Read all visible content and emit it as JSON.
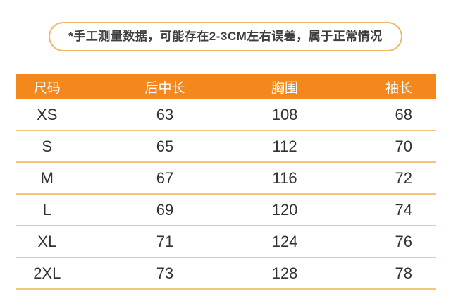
{
  "notice": {
    "text": "*手工测量数据，可能存在2-3CM左右误差，属于正常情况"
  },
  "table": {
    "headers": [
      "尺码",
      "后中长",
      "胸围",
      "袖长"
    ],
    "rows": [
      {
        "size": "XS",
        "back_length": "63",
        "chest": "108",
        "sleeve": "68"
      },
      {
        "size": "S",
        "back_length": "65",
        "chest": "112",
        "sleeve": "70"
      },
      {
        "size": "M",
        "back_length": "67",
        "chest": "116",
        "sleeve": "72"
      },
      {
        "size": "L",
        "back_length": "69",
        "chest": "120",
        "sleeve": "74"
      },
      {
        "size": "XL",
        "back_length": "71",
        "chest": "124",
        "sleeve": "76"
      },
      {
        "size": "2XL",
        "back_length": "73",
        "chest": "128",
        "sleeve": "78"
      }
    ]
  },
  "colors": {
    "header_bg": "#F5881D",
    "header_text": "#FFFFFF",
    "divider": "#F2C67E",
    "notice_border": "#EFB966",
    "body_text": "#333333"
  }
}
